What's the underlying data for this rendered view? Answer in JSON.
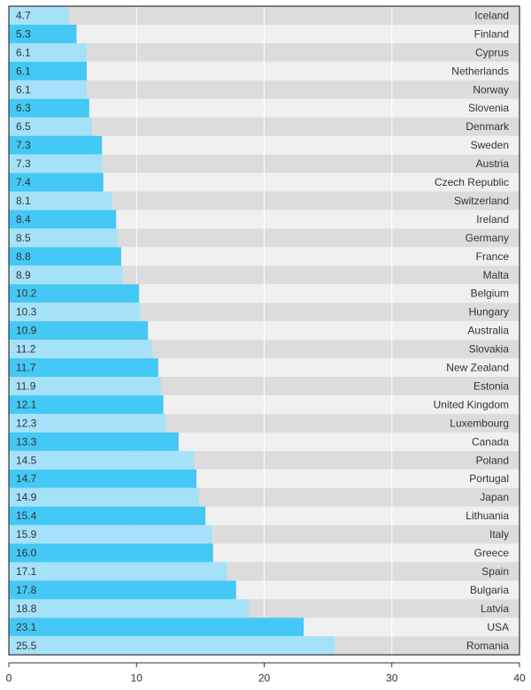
{
  "chart_data": {
    "type": "bar",
    "orientation": "horizontal",
    "categories": [
      "Iceland",
      "Finland",
      "Cyprus",
      "Netherlands",
      "Norway",
      "Slovenia",
      "Denmark",
      "Sweden",
      "Austria",
      "Czech Republic",
      "Switzerland",
      "Ireland",
      "Germany",
      "France",
      "Malta",
      "Belgium",
      "Hungary",
      "Australia",
      "Slovakia",
      "New Zealand",
      "Estonia",
      "United Kingdom",
      "Luxembourg",
      "Canada",
      "Poland",
      "Portugal",
      "Japan",
      "Lithuania",
      "Italy",
      "Greece",
      "Spain",
      "Bulgaria",
      "Latvia",
      "USA",
      "Romania"
    ],
    "values": [
      4.7,
      5.3,
      6.1,
      6.1,
      6.1,
      6.3,
      6.5,
      7.3,
      7.3,
      7.4,
      8.1,
      8.4,
      8.5,
      8.8,
      8.9,
      10.2,
      10.3,
      10.9,
      11.2,
      11.7,
      11.9,
      12.1,
      12.3,
      13.3,
      14.5,
      14.7,
      14.9,
      15.4,
      15.9,
      16.0,
      17.1,
      17.8,
      18.8,
      23.1,
      25.5
    ],
    "value_labels": [
      "4.7",
      "5.3",
      "6.1",
      "6.1",
      "6.1",
      "6.3",
      "6.5",
      "7.3",
      "7.3",
      "7.4",
      "8.1",
      "8.4",
      "8.5",
      "8.8",
      "8.9",
      "10.2",
      "10.3",
      "10.9",
      "11.2",
      "11.7",
      "11.9",
      "12.1",
      "12.3",
      "13.3",
      "14.5",
      "14.7",
      "14.9",
      "15.4",
      "15.9",
      "16.0",
      "17.1",
      "17.8",
      "18.8",
      "23.1",
      "25.5"
    ],
    "xlim": [
      0,
      40
    ],
    "xticks": [
      0,
      10,
      20,
      30,
      40
    ],
    "xtick_labels": [
      "0",
      "10",
      "20",
      "30",
      "40"
    ],
    "grid": true,
    "colors": {
      "bar_dark": "#44c8f5",
      "bar_light": "#a6e1fa",
      "row_dark": "#dcdcdc",
      "row_light": "#f0f0f0",
      "gridline": "#ffffff",
      "axis": "#333333",
      "text": "#333333"
    }
  }
}
